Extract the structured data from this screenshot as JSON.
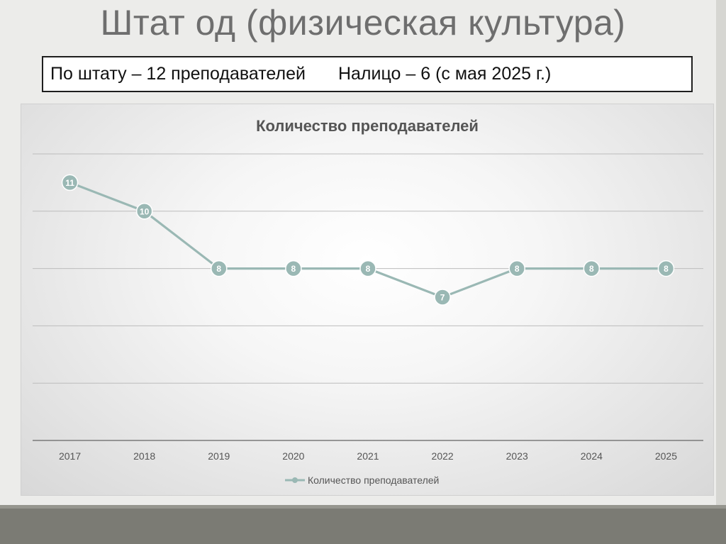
{
  "slide": {
    "title": "Штат од (физическая культура)",
    "info_left": "По штату – 12 преподавателей",
    "info_right": "Налицо – 6 (с мая 2025 г.)"
  },
  "chart_data": {
    "type": "line",
    "title": "Количество преподавателей",
    "categories": [
      "2017",
      "2018",
      "2019",
      "2020",
      "2021",
      "2022",
      "2023",
      "2024",
      "2025"
    ],
    "series": [
      {
        "name": "Количество преподавателей",
        "values": [
          11,
          10,
          8,
          8,
          8,
          7,
          8,
          8,
          8
        ],
        "color": "#9ab8b4"
      }
    ],
    "ylim": [
      2,
      12
    ],
    "y_gridlines": [
      2,
      4,
      6,
      8,
      10,
      12
    ],
    "y_tick_labels_shown": false,
    "data_labels": true,
    "grid": true,
    "legend": "bottom"
  }
}
